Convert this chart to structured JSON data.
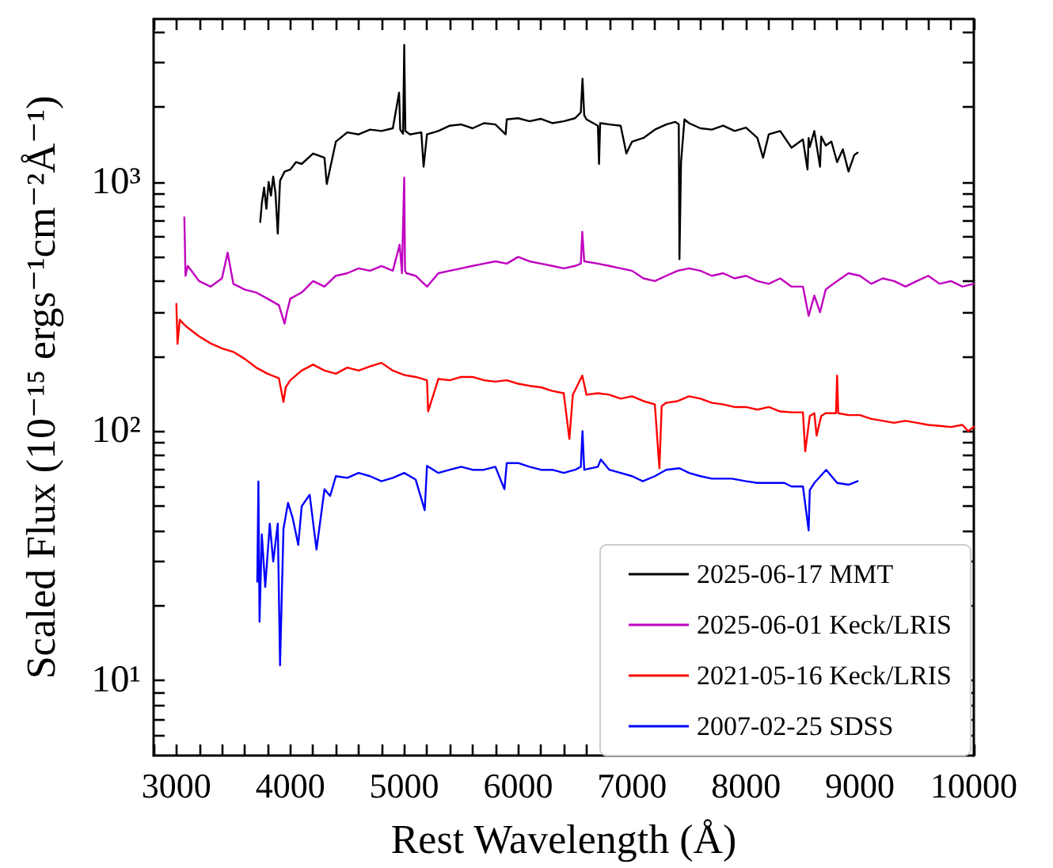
{
  "chart_data": {
    "type": "line",
    "xlabel": "Rest Wavelength (Å)",
    "ylabel": "Scaled Flux (10⁻¹⁵ ergs⁻¹cm⁻²Å⁻¹)",
    "log": "y",
    "grid": false,
    "legend": "bottom right",
    "marker": "none",
    "line_style": "solid",
    "xlim": [
      2800,
      10000
    ],
    "xticks": [
      {
        "value": 2800,
        "label": null
      },
      3000,
      {
        "value": 3200,
        "label": null
      },
      {
        "value": 3400,
        "label": null
      },
      {
        "value": 3600,
        "label": null
      },
      {
        "value": 3800,
        "label": null
      },
      4000,
      {
        "value": 4200,
        "label": null
      },
      {
        "value": 4400,
        "label": null
      },
      {
        "value": 4600,
        "label": null
      },
      {
        "value": 4800,
        "label": null
      },
      5000,
      {
        "value": 5200,
        "label": null
      },
      {
        "value": 5400,
        "label": null
      },
      {
        "value": 5600,
        "label": null
      },
      {
        "value": 5800,
        "label": null
      },
      6000,
      {
        "value": 6200,
        "label": null
      },
      {
        "value": 6400,
        "label": null
      },
      {
        "value": 6600,
        "label": null
      },
      {
        "value": 6800,
        "label": null
      },
      7000,
      {
        "value": 7200,
        "label": null
      },
      {
        "value": 7400,
        "label": null
      },
      {
        "value": 7600,
        "label": null
      },
      {
        "value": 7800,
        "label": null
      },
      8000,
      {
        "value": 8200,
        "label": null
      },
      {
        "value": 8400,
        "label": null
      },
      {
        "value": 8600,
        "label": null
      },
      {
        "value": 8800,
        "label": null
      },
      9000,
      {
        "value": 9200,
        "label": null
      },
      {
        "value": 9400,
        "label": null
      },
      {
        "value": 9600,
        "label": null
      },
      {
        "value": 9800,
        "label": null
      },
      10000
    ],
    "ylim": [
      5,
      4500
    ],
    "yticks": [
      {
        "value": 6,
        "label": null
      },
      {
        "value": 7,
        "label": null
      },
      {
        "value": 8,
        "label": null
      },
      {
        "value": 9,
        "label": null
      },
      {
        "value": 10,
        "label": "10¹"
      },
      {
        "value": 20,
        "label": null
      },
      {
        "value": 30,
        "label": null
      },
      {
        "value": 40,
        "label": null
      },
      {
        "value": 50,
        "label": null
      },
      {
        "value": 60,
        "label": null
      },
      {
        "value": 70,
        "label": null
      },
      {
        "value": 80,
        "label": null
      },
      {
        "value": 90,
        "label": null
      },
      {
        "value": 100,
        "label": "10²"
      },
      {
        "value": 200,
        "label": null
      },
      {
        "value": 300,
        "label": null
      },
      {
        "value": 400,
        "label": null
      },
      {
        "value": 500,
        "label": null
      },
      {
        "value": 600,
        "label": null
      },
      {
        "value": 700,
        "label": null
      },
      {
        "value": 800,
        "label": null
      },
      {
        "value": 900,
        "label": null
      },
      {
        "value": 1000,
        "label": "10³"
      },
      {
        "value": 2000,
        "label": null
      },
      {
        "value": 3000,
        "label": null
      },
      {
        "value": 4000,
        "label": null
      }
    ],
    "series": [
      {
        "name": "2025-06-17 MMT",
        "color": "#000000",
        "x": [
          3736,
          3750,
          3770,
          3790,
          3810,
          3830,
          3850,
          3870,
          3890,
          3910,
          3950,
          4000,
          4050,
          4100,
          4200,
          4300,
          4320,
          4400,
          4500,
          4600,
          4700,
          4800,
          4900,
          4955,
          4965,
          4990,
          5000,
          5010,
          5050,
          5150,
          5170,
          5200,
          5300,
          5400,
          5500,
          5600,
          5700,
          5800,
          5890,
          5900,
          6000,
          6100,
          6200,
          6300,
          6400,
          6500,
          6550,
          6565,
          6580,
          6600,
          6700,
          6710,
          6720,
          6800,
          6900,
          6950,
          7000,
          7100,
          7200,
          7300,
          7380,
          7410,
          7416,
          7430,
          7460,
          7500,
          7600,
          7700,
          7800,
          7900,
          8000,
          8100,
          8150,
          8200,
          8300,
          8400,
          8500,
          8540,
          8550,
          8560,
          8600,
          8650,
          8660,
          8700,
          8750,
          8800,
          8850,
          8900,
          8950,
          8980
        ],
        "values": [
          690,
          820,
          950,
          780,
          1000,
          880,
          1050,
          900,
          620,
          1010,
          1100,
          1120,
          1200,
          1180,
          1300,
          1250,
          980,
          1450,
          1580,
          1550,
          1620,
          1600,
          1640,
          2280,
          1620,
          1560,
          3540,
          1600,
          1550,
          1580,
          1150,
          1550,
          1600,
          1680,
          1700,
          1640,
          1720,
          1700,
          1550,
          1780,
          1800,
          1750,
          1790,
          1720,
          1750,
          1800,
          1900,
          2590,
          1850,
          1780,
          1680,
          1180,
          1720,
          1700,
          1680,
          1300,
          1450,
          1500,
          1620,
          1700,
          1740,
          1700,
          490,
          1200,
          1780,
          1720,
          1640,
          1620,
          1680,
          1600,
          1650,
          1500,
          1250,
          1550,
          1600,
          1370,
          1480,
          1120,
          1500,
          1380,
          1600,
          1150,
          1520,
          1400,
          1450,
          1200,
          1350,
          1100,
          1280,
          1310
        ]
      },
      {
        "name": "2025-06-01 Keck/LRIS",
        "color": "#c000c0",
        "x": [
          3070,
          3080,
          3100,
          3200,
          3300,
          3400,
          3450,
          3500,
          3600,
          3700,
          3800,
          3900,
          3950,
          3970,
          4000,
          4100,
          4200,
          4300,
          4400,
          4500,
          4600,
          4700,
          4800,
          4900,
          4960,
          4980,
          5000,
          5007,
          5020,
          5100,
          5200,
          5300,
          5400,
          5500,
          5600,
          5700,
          5800,
          5900,
          6000,
          6100,
          6200,
          6300,
          6400,
          6500,
          6550,
          6563,
          6580,
          6700,
          6800,
          6900,
          7000,
          7100,
          7200,
          7300,
          7400,
          7500,
          7600,
          7700,
          7800,
          7900,
          8000,
          8100,
          8200,
          8300,
          8400,
          8500,
          8550,
          8600,
          8650,
          8700,
          8800,
          8900,
          9000,
          9100,
          9200,
          9300,
          9400,
          9500,
          9600,
          9700,
          9800,
          9900,
          10000
        ],
        "values": [
          720,
          420,
          460,
          400,
          380,
          410,
          520,
          390,
          370,
          360,
          340,
          320,
          270,
          300,
          340,
          360,
          400,
          380,
          420,
          430,
          450,
          440,
          460,
          440,
          560,
          430,
          1040,
          440,
          430,
          420,
          380,
          430,
          440,
          450,
          460,
          470,
          480,
          470,
          500,
          480,
          470,
          460,
          450,
          460,
          470,
          630,
          480,
          470,
          460,
          450,
          440,
          410,
          400,
          420,
          440,
          450,
          440,
          420,
          430,
          410,
          420,
          400,
          390,
          410,
          380,
          380,
          290,
          350,
          300,
          370,
          400,
          430,
          420,
          390,
          410,
          400,
          380,
          400,
          420,
          390,
          400,
          380,
          390
        ]
      },
      {
        "name": "2021-05-16 Keck/LRIS",
        "color": "#ff0000",
        "x": [
          3000,
          3010,
          3030,
          3060,
          3100,
          3200,
          3300,
          3400,
          3500,
          3600,
          3700,
          3800,
          3900,
          3940,
          3960,
          4000,
          4100,
          4200,
          4300,
          4400,
          4500,
          4600,
          4700,
          4800,
          4900,
          5000,
          5100,
          5200,
          5210,
          5300,
          5400,
          5500,
          5600,
          5700,
          5800,
          5900,
          6000,
          6100,
          6200,
          6300,
          6400,
          6450,
          6480,
          6563,
          6600,
          6700,
          6800,
          6900,
          7000,
          7100,
          7200,
          7240,
          7260,
          7300,
          7400,
          7500,
          7600,
          7700,
          7800,
          7900,
          8000,
          8100,
          8200,
          8300,
          8400,
          8500,
          8520,
          8560,
          8600,
          8620,
          8660,
          8700,
          8790,
          8800,
          8810,
          8900,
          9000,
          9100,
          9200,
          9300,
          9400,
          9500,
          9600,
          9700,
          9800,
          9900,
          9950,
          10000
        ],
        "values": [
          324,
          224,
          280,
          270,
          260,
          240,
          225,
          215,
          208,
          195,
          180,
          170,
          163,
          131,
          150,
          160,
          175,
          185,
          175,
          170,
          180,
          175,
          182,
          188,
          175,
          168,
          165,
          160,
          120,
          162,
          160,
          165,
          165,
          160,
          158,
          160,
          155,
          152,
          150,
          145,
          142,
          93,
          140,
          167,
          140,
          142,
          140,
          135,
          138,
          132,
          128,
          71,
          126,
          130,
          132,
          138,
          135,
          130,
          128,
          125,
          125,
          122,
          125,
          120,
          119,
          119,
          83,
          115,
          118,
          96,
          115,
          118,
          118,
          167,
          118,
          116,
          116,
          112,
          110,
          108,
          110,
          108,
          106,
          105,
          104,
          106,
          100,
          104
        ]
      },
      {
        "name": "2007-02-25 SDSS",
        "color": "#0000ff",
        "x": [
          3710,
          3720,
          3730,
          3750,
          3780,
          3820,
          3850,
          3890,
          3910,
          3940,
          3980,
          4020,
          4070,
          4100,
          4170,
          4230,
          4300,
          4350,
          4400,
          4500,
          4600,
          4700,
          4800,
          4900,
          5000,
          5100,
          5180,
          5200,
          5300,
          5400,
          5500,
          5600,
          5700,
          5800,
          5880,
          5900,
          6000,
          6100,
          6200,
          6300,
          6400,
          6500,
          6550,
          6565,
          6580,
          6700,
          6726,
          6800,
          6900,
          7000,
          7094,
          7200,
          7300,
          7416,
          7500,
          7600,
          7700,
          7876,
          8000,
          8100,
          8200,
          8336,
          8400,
          8500,
          8550,
          8560,
          8600,
          8704,
          8800,
          8900,
          8980
        ],
        "values": [
          24.9,
          62.8,
          17.2,
          38.6,
          23.7,
          42.6,
          30,
          42.6,
          11.5,
          40.5,
          51.6,
          45,
          35,
          50,
          55.6,
          33.5,
          58.5,
          55,
          66,
          65,
          68,
          66,
          63,
          65,
          68,
          64,
          48.2,
          72.6,
          68,
          70,
          72,
          70,
          70,
          72,
          58.5,
          74.5,
          74.5,
          72,
          70,
          70,
          68,
          70,
          72,
          100,
          70,
          72,
          77,
          70,
          68,
          66,
          63,
          66,
          70,
          71,
          68,
          66,
          64.5,
          64.5,
          63,
          62,
          62,
          62,
          60,
          60,
          40,
          58,
          62,
          70,
          62,
          61,
          63
        ]
      }
    ]
  }
}
